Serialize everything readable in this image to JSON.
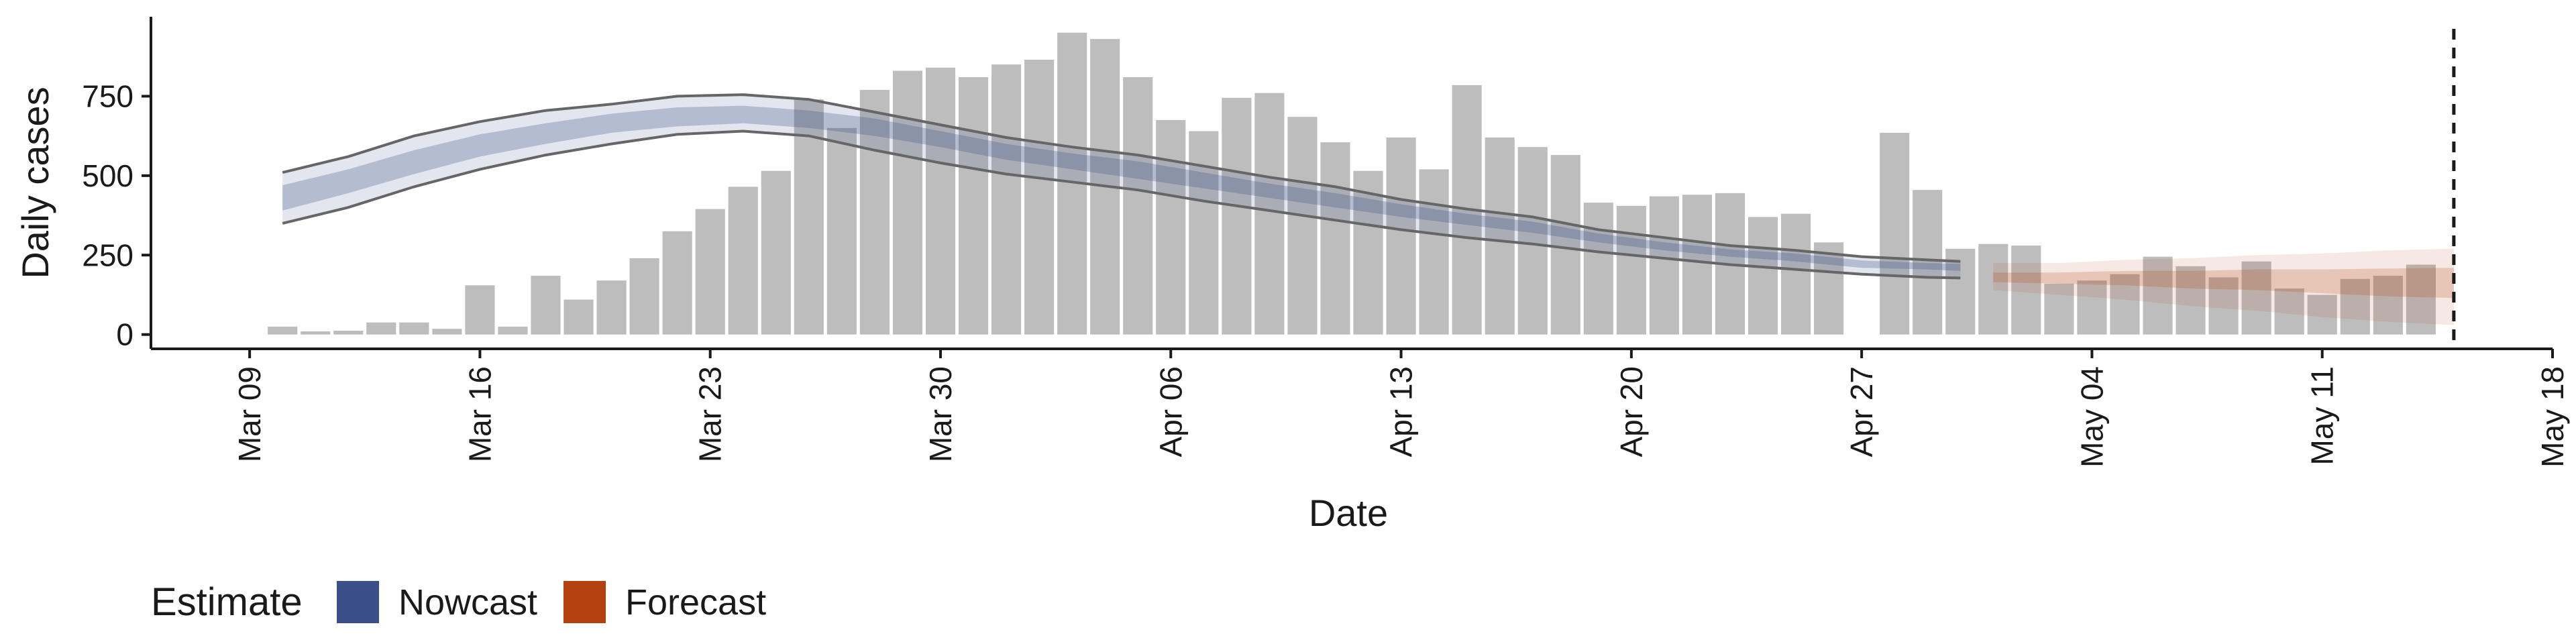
{
  "chart_data": {
    "type": "bar",
    "xlabel": "Date",
    "ylabel": "Daily cases",
    "x_start_date": "2020-03-09",
    "x_ticks": [
      "Mar 09",
      "Mar 16",
      "Mar 23",
      "Mar 30",
      "Apr 06",
      "Apr 13",
      "Apr 20",
      "Apr 27",
      "May 04",
      "May 11",
      "May 18"
    ],
    "y_ticks": [
      0,
      250,
      500,
      750
    ],
    "ylim": [
      -45,
      1000
    ],
    "xlim_dates": [
      "2020-03-06",
      "2020-05-18"
    ],
    "vline_date": "2020-05-15",
    "bars": {
      "color": "#bdbdbd",
      "dates": [
        "2020-03-10",
        "2020-03-11",
        "2020-03-12",
        "2020-03-13",
        "2020-03-14",
        "2020-03-15",
        "2020-03-16",
        "2020-03-17",
        "2020-03-18",
        "2020-03-19",
        "2020-03-20",
        "2020-03-21",
        "2020-03-22",
        "2020-03-23",
        "2020-03-24",
        "2020-03-25",
        "2020-03-26",
        "2020-03-27",
        "2020-03-28",
        "2020-03-29",
        "2020-03-30",
        "2020-03-31",
        "2020-04-01",
        "2020-04-02",
        "2020-04-03",
        "2020-04-04",
        "2020-04-05",
        "2020-04-06",
        "2020-04-07",
        "2020-04-08",
        "2020-04-09",
        "2020-04-10",
        "2020-04-11",
        "2020-04-12",
        "2020-04-13",
        "2020-04-14",
        "2020-04-15",
        "2020-04-16",
        "2020-04-17",
        "2020-04-18",
        "2020-04-19",
        "2020-04-20",
        "2020-04-21",
        "2020-04-22",
        "2020-04-23",
        "2020-04-24",
        "2020-04-25",
        "2020-04-26",
        "2020-04-28",
        "2020-04-29",
        "2020-04-30",
        "2020-05-01",
        "2020-05-02",
        "2020-05-03",
        "2020-05-04",
        "2020-05-05",
        "2020-05-06",
        "2020-05-07",
        "2020-05-08",
        "2020-05-09",
        "2020-05-10",
        "2020-05-11",
        "2020-05-12",
        "2020-05-13",
        "2020-05-14"
      ],
      "values": [
        25,
        10,
        12,
        38,
        38,
        18,
        155,
        25,
        185,
        110,
        170,
        240,
        325,
        395,
        465,
        515,
        740,
        650,
        770,
        830,
        840,
        810,
        850,
        865,
        950,
        930,
        810,
        675,
        640,
        745,
        760,
        685,
        605,
        515,
        620,
        520,
        785,
        620,
        590,
        565,
        415,
        405,
        435,
        440,
        445,
        370,
        380,
        290,
        635,
        455,
        270,
        285,
        280,
        160,
        170,
        190,
        245,
        215,
        180,
        230,
        145,
        125,
        175,
        185,
        220
      ]
    },
    "nowcast": {
      "name": "Nowcast",
      "color": "#3a4f8a",
      "dates": [
        "2020-03-10",
        "2020-03-12",
        "2020-03-14",
        "2020-03-16",
        "2020-03-18",
        "2020-03-20",
        "2020-03-22",
        "2020-03-24",
        "2020-03-26",
        "2020-03-28",
        "2020-03-30",
        "2020-04-01",
        "2020-04-03",
        "2020-04-05",
        "2020-04-07",
        "2020-04-09",
        "2020-04-11",
        "2020-04-13",
        "2020-04-15",
        "2020-04-17",
        "2020-04-19",
        "2020-04-21",
        "2020-04-23",
        "2020-04-25",
        "2020-04-27",
        "2020-04-29",
        "2020-04-30"
      ],
      "outer_upper": [
        510,
        560,
        625,
        670,
        705,
        725,
        750,
        755,
        740,
        700,
        660,
        620,
        590,
        565,
        530,
        495,
        465,
        425,
        395,
        370,
        330,
        305,
        280,
        265,
        245,
        235,
        230
      ],
      "inner_upper": [
        470,
        520,
        580,
        630,
        665,
        695,
        715,
        720,
        705,
        680,
        640,
        600,
        570,
        545,
        510,
        475,
        445,
        410,
        380,
        355,
        318,
        290,
        268,
        255,
        233,
        225,
        222
      ],
      "inner_lower": [
        390,
        445,
        505,
        560,
        600,
        635,
        655,
        665,
        650,
        625,
        590,
        550,
        520,
        490,
        460,
        430,
        400,
        370,
        345,
        320,
        290,
        265,
        245,
        230,
        210,
        205,
        200
      ],
      "outer_lower": [
        350,
        400,
        465,
        520,
        565,
        600,
        630,
        640,
        625,
        580,
        540,
        505,
        480,
        455,
        420,
        390,
        360,
        330,
        305,
        285,
        260,
        240,
        220,
        205,
        190,
        180,
        178
      ]
    },
    "forecast": {
      "name": "Forecast",
      "color": "#b5400f",
      "dates": [
        "2020-05-01",
        "2020-05-03",
        "2020-05-05",
        "2020-05-07",
        "2020-05-09",
        "2020-05-11",
        "2020-05-13",
        "2020-05-15"
      ],
      "outer_upper": [
        225,
        225,
        235,
        240,
        250,
        255,
        265,
        270
      ],
      "inner_upper": [
        195,
        195,
        200,
        200,
        205,
        205,
        208,
        210
      ],
      "inner_lower": [
        165,
        160,
        155,
        145,
        140,
        130,
        120,
        115
      ],
      "outer_lower": [
        140,
        125,
        110,
        90,
        75,
        55,
        40,
        30
      ]
    },
    "legend": {
      "title": "Estimate",
      "placement": "bottom-left",
      "entries": [
        {
          "label": "Nowcast",
          "color": "#3a4f8a"
        },
        {
          "label": "Forecast",
          "color": "#b5400f"
        }
      ]
    }
  }
}
